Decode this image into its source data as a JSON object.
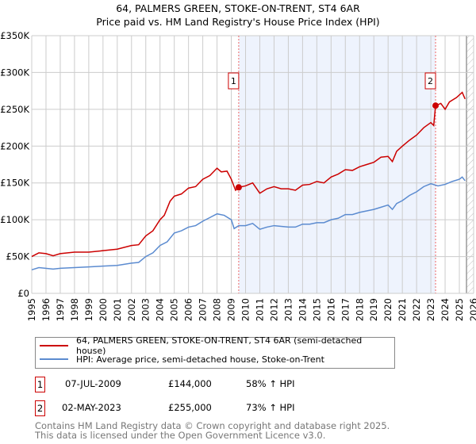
{
  "chart_data": {
    "type": "line",
    "title": "64, PALMERS GREEN, STOKE-ON-TRENT, ST4 6AR",
    "subtitle": "Price paid vs. HM Land Registry's House Price Index (HPI)",
    "xlim": [
      1995,
      2026
    ],
    "ylim": [
      0,
      350000
    ],
    "x_ticks": [
      "1995",
      "1996",
      "1997",
      "1998",
      "1999",
      "2000",
      "2001",
      "2002",
      "2003",
      "2004",
      "2005",
      "2006",
      "2007",
      "2008",
      "2009",
      "2010",
      "2011",
      "2012",
      "2013",
      "2014",
      "2015",
      "2016",
      "2017",
      "2018",
      "2019",
      "2020",
      "2021",
      "2022",
      "2023",
      "2024",
      "2025",
      "2026"
    ],
    "y_ticks": [
      {
        "v": 0,
        "label": "£0"
      },
      {
        "v": 50000,
        "label": "£50K"
      },
      {
        "v": 100000,
        "label": "£100K"
      },
      {
        "v": 150000,
        "label": "£150K"
      },
      {
        "v": 200000,
        "label": "£200K"
      },
      {
        "v": 250000,
        "label": "£250K"
      },
      {
        "v": 300000,
        "label": "£300K"
      },
      {
        "v": 350000,
        "label": "£350K"
      }
    ],
    "grid": true,
    "shaded_range": [
      2009.52,
      2023.33
    ],
    "future_hatch_from": 2025.5,
    "series": [
      {
        "name": "64, PALMERS GREEN, STOKE-ON-TRENT, ST4 6AR (semi-detached house)",
        "color": "#cc0000",
        "points": [
          [
            1995,
            50000
          ],
          [
            1995.5,
            55000
          ],
          [
            1996,
            54000
          ],
          [
            1996.5,
            51000
          ],
          [
            1997,
            54000
          ],
          [
            1998,
            56000
          ],
          [
            1999,
            56000
          ],
          [
            2000,
            58000
          ],
          [
            2001,
            60000
          ],
          [
            2002,
            65000
          ],
          [
            2002.5,
            66000
          ],
          [
            2003,
            78000
          ],
          [
            2003.5,
            85000
          ],
          [
            2004,
            100000
          ],
          [
            2004.3,
            106000
          ],
          [
            2004.7,
            125000
          ],
          [
            2005,
            132000
          ],
          [
            2005.5,
            135000
          ],
          [
            2006,
            143000
          ],
          [
            2006.5,
            145000
          ],
          [
            2007,
            155000
          ],
          [
            2007.5,
            160000
          ],
          [
            2008,
            170000
          ],
          [
            2008.3,
            165000
          ],
          [
            2008.7,
            166000
          ],
          [
            2009,
            155000
          ],
          [
            2009.3,
            140000
          ],
          [
            2009.52,
            144000
          ],
          [
            2010,
            146000
          ],
          [
            2010.5,
            150000
          ],
          [
            2011,
            136000
          ],
          [
            2011.5,
            142000
          ],
          [
            2012,
            145000
          ],
          [
            2012.5,
            142000
          ],
          [
            2013,
            142000
          ],
          [
            2013.5,
            140000
          ],
          [
            2014,
            147000
          ],
          [
            2014.5,
            148000
          ],
          [
            2015,
            152000
          ],
          [
            2015.5,
            150000
          ],
          [
            2016,
            158000
          ],
          [
            2016.5,
            162000
          ],
          [
            2017,
            168000
          ],
          [
            2017.5,
            167000
          ],
          [
            2018,
            172000
          ],
          [
            2018.5,
            175000
          ],
          [
            2019,
            178000
          ],
          [
            2019.5,
            185000
          ],
          [
            2020,
            186000
          ],
          [
            2020.3,
            179000
          ],
          [
            2020.6,
            193000
          ],
          [
            2021,
            200000
          ],
          [
            2021.5,
            208000
          ],
          [
            2022,
            215000
          ],
          [
            2022.5,
            225000
          ],
          [
            2023,
            232000
          ],
          [
            2023.2,
            228000
          ],
          [
            2023.33,
            255000
          ],
          [
            2023.7,
            258000
          ],
          [
            2024,
            250000
          ],
          [
            2024.3,
            260000
          ],
          [
            2024.8,
            266000
          ],
          [
            2025.2,
            273000
          ],
          [
            2025.4,
            264000
          ]
        ]
      },
      {
        "name": "HPI: Average price, semi-detached house, Stoke-on-Trent",
        "color": "#5b8bd0",
        "points": [
          [
            1995,
            32000
          ],
          [
            1995.5,
            35000
          ],
          [
            1996.5,
            33000
          ],
          [
            1997,
            34000
          ],
          [
            1998,
            35000
          ],
          [
            1999,
            36000
          ],
          [
            2000,
            37000
          ],
          [
            2001,
            38000
          ],
          [
            2002,
            41000
          ],
          [
            2002.5,
            42000
          ],
          [
            2003,
            50000
          ],
          [
            2003.5,
            55000
          ],
          [
            2004,
            65000
          ],
          [
            2004.5,
            70000
          ],
          [
            2005,
            82000
          ],
          [
            2005.5,
            85000
          ],
          [
            2006,
            90000
          ],
          [
            2006.5,
            92000
          ],
          [
            2007,
            98000
          ],
          [
            2007.5,
            103000
          ],
          [
            2008,
            108000
          ],
          [
            2008.5,
            106000
          ],
          [
            2009,
            100000
          ],
          [
            2009.2,
            88000
          ],
          [
            2009.52,
            92000
          ],
          [
            2010,
            92000
          ],
          [
            2010.5,
            95000
          ],
          [
            2011,
            87000
          ],
          [
            2011.5,
            90000
          ],
          [
            2012,
            92000
          ],
          [
            2013,
            90000
          ],
          [
            2013.5,
            90000
          ],
          [
            2014,
            94000
          ],
          [
            2014.5,
            94000
          ],
          [
            2015,
            96000
          ],
          [
            2015.5,
            96000
          ],
          [
            2016,
            100000
          ],
          [
            2016.5,
            102000
          ],
          [
            2017,
            107000
          ],
          [
            2017.5,
            107000
          ],
          [
            2018,
            110000
          ],
          [
            2018.5,
            112000
          ],
          [
            2019,
            114000
          ],
          [
            2019.5,
            117000
          ],
          [
            2020,
            120000
          ],
          [
            2020.3,
            114000
          ],
          [
            2020.6,
            122000
          ],
          [
            2021,
            126000
          ],
          [
            2021.5,
            133000
          ],
          [
            2022,
            138000
          ],
          [
            2022.5,
            145000
          ],
          [
            2023,
            149000
          ],
          [
            2023.5,
            146000
          ],
          [
            2024,
            148000
          ],
          [
            2024.5,
            152000
          ],
          [
            2025,
            155000
          ],
          [
            2025.2,
            158000
          ],
          [
            2025.4,
            153000
          ]
        ]
      }
    ],
    "sales": [
      {
        "id": "1",
        "x": 2009.52,
        "value": 144000,
        "date": "07-JUL-2009",
        "price": "£144,000",
        "hpi": "58% ↑ HPI"
      },
      {
        "id": "2",
        "x": 2023.33,
        "value": 255000,
        "date": "02-MAY-2023",
        "price": "£255,000",
        "hpi": "73% ↑ HPI"
      }
    ]
  },
  "footer": {
    "line1": "Contains HM Land Registry data © Crown copyright and database right 2025.",
    "line2": "This data is licensed under the Open Government Licence v3.0."
  }
}
